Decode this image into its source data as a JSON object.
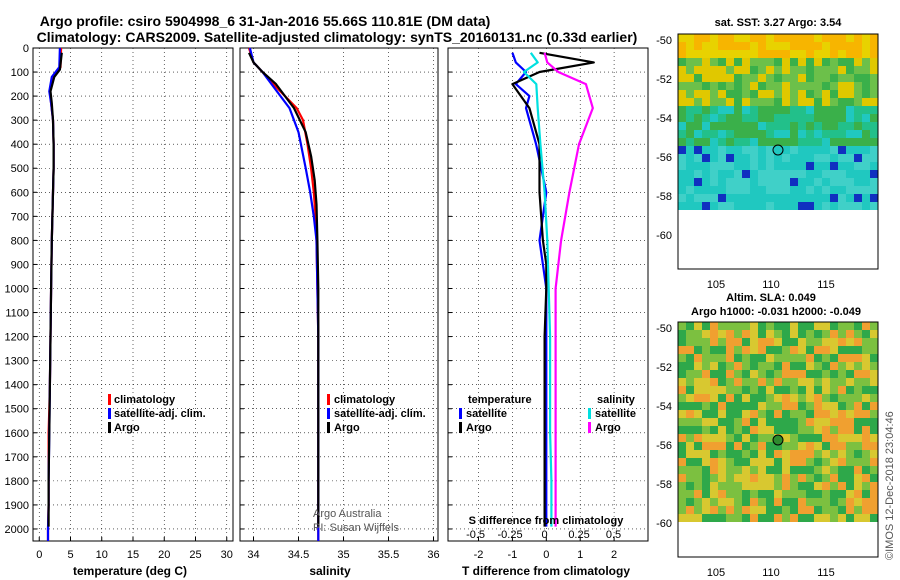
{
  "title_line1": "Argo profile: csiro 5904998_6 31-Jan-2016 55.66S 110.81E (DM data)",
  "title_line2": "Climatology: CARS2009. Satellite-adjusted climatology: synTS_20160131.nc (0.33d earlier)",
  "map_sst": {
    "title": "sat. SST: 3.27 Argo: 3.54",
    "xticks": [
      "105",
      "110",
      "115"
    ],
    "yticks": [
      "-50",
      "-52",
      "-54",
      "-56",
      "-58",
      "-60"
    ]
  },
  "map_sla": {
    "title1": "Altim. SLA: 0.049",
    "title2": "Argo h1000: -0.031 h2000: -0.049",
    "xticks": [
      "105",
      "110",
      "115"
    ],
    "yticks": [
      "-50",
      "-52",
      "-54",
      "-56",
      "-58",
      "-60"
    ]
  },
  "credit": "Argo Australia",
  "pi": "PI: Susan Wijffels",
  "imos": "©IMOS 12-Dec-2018 23:04:46",
  "colors": {
    "climatology": "#ff0000",
    "satellite": "#0000ff",
    "argo": "#000000",
    "argo_s_diff": "#ff00ff",
    "satellite_s_diff": "#00e0e0"
  },
  "chart_data": [
    {
      "type": "line",
      "xlabel": "temperature (deg C)",
      "ylabel": "",
      "xlim": [
        -1,
        31
      ],
      "ylim": [
        2050,
        0
      ],
      "xticks": [
        "0",
        "5",
        "10",
        "15",
        "20",
        "25",
        "30"
      ],
      "yticks": [
        "0",
        "100",
        "200",
        "300",
        "400",
        "500",
        "600",
        "700",
        "800",
        "900",
        "1000",
        "1100",
        "1200",
        "1300",
        "1400",
        "1500",
        "1600",
        "1700",
        "1800",
        "1900",
        "2000"
      ],
      "legend": [
        "climatology",
        "satellite-adj. clim.",
        "Argo"
      ],
      "series": [
        {
          "name": "climatology",
          "x": [
            3.5,
            3.4,
            2.2,
            1.7,
            1.9,
            2.2,
            2.3,
            2.3,
            2.2,
            2.1,
            2.0,
            1.9,
            1.8,
            1.7,
            1.6,
            1.5,
            1.5,
            1.5,
            1.4,
            1.4
          ],
          "y": [
            0,
            80,
            120,
            180,
            230,
            300,
            400,
            500,
            600,
            700,
            800,
            1000,
            1200,
            1400,
            1500,
            1600,
            1800,
            1900,
            2000,
            2050
          ]
        },
        {
          "name": "satellite-adj. clim.",
          "x": [
            3.3,
            3.2,
            2.0,
            1.6,
            1.9,
            2.2,
            2.3,
            2.3,
            2.2,
            2.1,
            2.0,
            1.9,
            1.8,
            1.7,
            1.6,
            1.5,
            1.5,
            1.4,
            1.4
          ],
          "y": [
            0,
            80,
            120,
            180,
            230,
            300,
            400,
            500,
            600,
            700,
            800,
            1000,
            1200,
            1400,
            1600,
            1800,
            1900,
            2000,
            2050
          ]
        },
        {
          "name": "Argo",
          "x": [
            3.6,
            3.3,
            2.4,
            1.8,
            2.0,
            2.2,
            2.3,
            2.3,
            2.2,
            2.1,
            2.0,
            1.9,
            1.8,
            1.7,
            1.6,
            1.5,
            1.5,
            1.5
          ],
          "y": [
            20,
            90,
            120,
            180,
            230,
            300,
            400,
            500,
            600,
            700,
            800,
            1000,
            1200,
            1400,
            1600,
            1800,
            1900,
            1990
          ]
        }
      ]
    },
    {
      "type": "line",
      "xlabel": "salinity",
      "ylabel": "",
      "xlim": [
        33.85,
        36.05
      ],
      "ylim": [
        2050,
        0
      ],
      "xticks": [
        "34",
        "34.5",
        "35",
        "35.5",
        "36"
      ],
      "legend": [
        "climatology",
        "satellite-adj. clim.",
        "Argo"
      ],
      "series": [
        {
          "name": "climatology",
          "x": [
            33.95,
            34.0,
            34.1,
            34.22,
            34.35,
            34.48,
            34.55,
            34.6,
            34.64,
            34.67,
            34.69,
            34.7,
            34.71,
            34.72,
            34.72,
            34.72,
            34.72
          ],
          "y": [
            0,
            60,
            100,
            150,
            200,
            250,
            300,
            400,
            500,
            600,
            700,
            800,
            1000,
            1200,
            1500,
            1800,
            2050
          ]
        },
        {
          "name": "satellite-adj. clim.",
          "x": [
            33.96,
            34.0,
            34.1,
            34.2,
            34.3,
            34.4,
            34.5,
            34.58,
            34.63,
            34.67,
            34.7,
            34.71,
            34.72,
            34.72,
            34.72
          ],
          "y": [
            0,
            60,
            100,
            150,
            200,
            250,
            350,
            500,
            600,
            700,
            800,
            1000,
            1200,
            1500,
            2050
          ]
        },
        {
          "name": "Argo",
          "x": [
            33.95,
            34.0,
            34.1,
            34.25,
            34.45,
            34.58,
            34.64,
            34.68,
            34.7,
            34.71,
            34.72,
            34.72,
            34.72,
            34.72
          ],
          "y": [
            20,
            60,
            100,
            150,
            250,
            350,
            450,
            550,
            650,
            800,
            1000,
            1300,
            1600,
            1990
          ]
        }
      ]
    },
    {
      "type": "line",
      "xlabel": "T difference from climatology",
      "x2label": "S difference from climatology",
      "xlim": [
        -2.9,
        3.0
      ],
      "x2lim": [
        -0.7,
        0.75
      ],
      "ylim": [
        2050,
        0
      ],
      "xticks": [
        "-2",
        "-1",
        "0",
        "1",
        "2"
      ],
      "x2ticks": [
        "-0.5",
        "-0.25",
        "0",
        "0.25",
        "0.5"
      ],
      "legend_title_temperature": "temperature",
      "legend_title_salinity": "salinity",
      "legend_left": [
        "satellite",
        "Argo"
      ],
      "legend_right": [
        "satellite",
        "Argo"
      ],
      "series": [
        {
          "name": "T satellite",
          "x": [
            -1.0,
            -0.9,
            -0.6,
            -0.9,
            -0.5,
            -0.6,
            -0.3,
            0.0,
            -0.2,
            -0.1,
            0.0,
            0.0,
            0.0,
            0.0,
            0.0,
            0.0,
            0.0
          ],
          "y": [
            20,
            60,
            100,
            150,
            200,
            250,
            400,
            600,
            800,
            900,
            1000,
            1200,
            1400,
            1600,
            1800,
            1900,
            1990
          ]
        },
        {
          "name": "T Argo",
          "x": [
            -0.2,
            1.4,
            -0.2,
            -1.0,
            -0.5,
            -0.2,
            -0.2,
            -0.1,
            0.0,
            0.0,
            -0.05,
            -0.05,
            -0.05,
            -0.05,
            -0.05
          ],
          "y": [
            20,
            60,
            100,
            150,
            250,
            400,
            600,
            800,
            900,
            1000,
            1200,
            1400,
            1600,
            1800,
            1990
          ]
        },
        {
          "name": "S satellite",
          "x": [
            -0.1,
            -0.05,
            -0.15,
            -0.06,
            -0.05,
            -0.03,
            0.0,
            0.02,
            0.03,
            0.04,
            0.04,
            0.04,
            0.05,
            0.05
          ],
          "y": [
            20,
            60,
            100,
            150,
            250,
            400,
            600,
            800,
            1000,
            1200,
            1400,
            1600,
            1800,
            1990
          ]
        },
        {
          "name": "S Argo",
          "x": [
            0.0,
            0.02,
            0.1,
            0.3,
            0.35,
            0.25,
            0.18,
            0.12,
            0.08,
            0.08,
            0.08,
            0.08,
            0.08
          ],
          "y": [
            20,
            60,
            100,
            150,
            250,
            400,
            600,
            800,
            1000,
            1200,
            1400,
            1600,
            1990
          ]
        }
      ]
    }
  ]
}
